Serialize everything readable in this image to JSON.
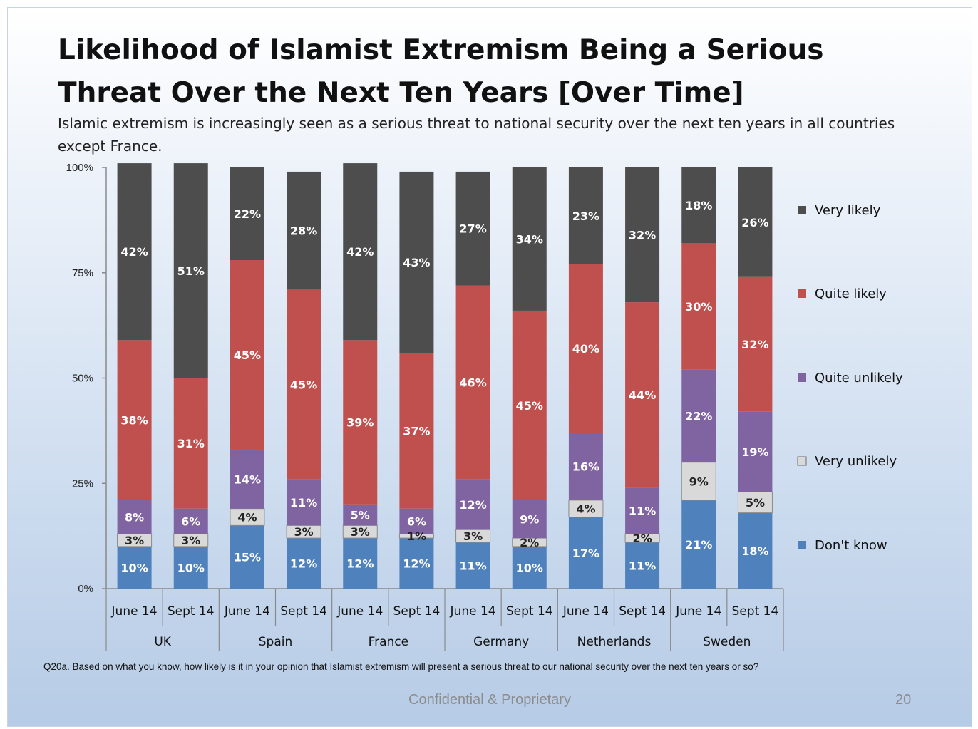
{
  "slide": {
    "title": "Likelihood of Islamist Extremism Being a Serious Threat Over the Next Ten Years [Over Time]",
    "subtitle": "Islamic extremism is increasingly seen as a serious threat to national security over the next ten years in all countries except France.",
    "footnote": "Q20a. Based on what you know, how likely is it in your opinion that Islamist extremism will present a serious threat to our national security over the next ten years or so?",
    "footer_center": "Confidential & Proprietary",
    "page_number": "20"
  },
  "chart_data": {
    "type": "bar",
    "stacked": true,
    "percent_stacked": true,
    "yticks": [
      "100%",
      "75%",
      "50%",
      "25%",
      "0%"
    ],
    "ylim": [
      0,
      100
    ],
    "groups": [
      "UK",
      "Spain",
      "France",
      "Germany",
      "Netherlands",
      "Sweden"
    ],
    "periods": [
      "June 14",
      "Sept 14"
    ],
    "categories": [
      "June 14",
      "Sept 14",
      "June 14",
      "Sept 14",
      "June 14",
      "Sept 14",
      "June 14",
      "Sept 14",
      "June 14",
      "Sept 14",
      "June 14",
      "Sept 14"
    ],
    "series": [
      {
        "name": "Don't know",
        "color": "#4f81bd",
        "values": [
          10,
          10,
          15,
          12,
          12,
          12,
          11,
          10,
          17,
          11,
          21,
          18
        ]
      },
      {
        "name": "Very unlikely",
        "color": "#d9d9d9",
        "values": [
          3,
          3,
          4,
          3,
          3,
          1,
          3,
          2,
          4,
          2,
          9,
          5
        ]
      },
      {
        "name": "Quite unlikely",
        "color": "#8064a2",
        "values": [
          8,
          6,
          14,
          11,
          5,
          6,
          12,
          9,
          16,
          11,
          22,
          19
        ]
      },
      {
        "name": "Quite likely",
        "color": "#c0504d",
        "values": [
          38,
          31,
          45,
          45,
          39,
          37,
          46,
          45,
          40,
          44,
          30,
          32
        ]
      },
      {
        "name": "Very likely",
        "color": "#4d4d4d",
        "values": [
          42,
          51,
          22,
          28,
          42,
          43,
          27,
          34,
          23,
          32,
          18,
          26
        ]
      }
    ],
    "legend_order": [
      "Very likely",
      "Quite likely",
      "Quite unlikely",
      "Very unlikely",
      "Don't know"
    ],
    "legend_position": "right",
    "grid": false
  }
}
